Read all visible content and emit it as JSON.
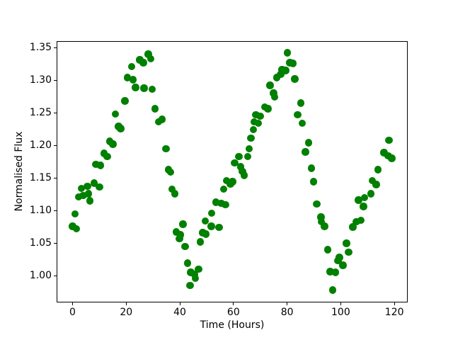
{
  "figure": {
    "background_color": "#ffffff",
    "axes_background_color": "#ffffff",
    "spine_color": "#000000"
  },
  "chart_data": {
    "type": "scatter",
    "title": "",
    "xlabel": "Time (Hours)",
    "ylabel": "Normalised Flux",
    "marker_color": "#008000",
    "marker_diameter_px": 10.6,
    "grid": false,
    "legend": null,
    "xlim": [
      -5.94,
      124.97
    ],
    "ylim": [
      0.959,
      1.36
    ],
    "xticks": [
      0,
      20,
      40,
      60,
      80,
      100,
      120
    ],
    "xtick_labels": [
      "0",
      "20",
      "40",
      "60",
      "80",
      "100",
      "120"
    ],
    "yticks": [
      1.0,
      1.05,
      1.1,
      1.15,
      1.2,
      1.25,
      1.3,
      1.35
    ],
    "ytick_labels": [
      "1.00",
      "1.05",
      "1.10",
      "1.15",
      "1.20",
      "1.25",
      "1.30",
      "1.35"
    ],
    "points": [
      [
        0.0,
        1.076
      ],
      [
        0.9,
        1.095
      ],
      [
        1.5,
        1.072
      ],
      [
        2.2,
        1.121
      ],
      [
        3.3,
        1.134
      ],
      [
        3.9,
        1.123
      ],
      [
        5.5,
        1.137
      ],
      [
        5.9,
        1.126
      ],
      [
        6.5,
        1.115
      ],
      [
        8.0,
        1.142
      ],
      [
        8.7,
        1.171
      ],
      [
        10.1,
        1.136
      ],
      [
        10.4,
        1.169
      ],
      [
        11.7,
        1.188
      ],
      [
        12.9,
        1.183
      ],
      [
        13.9,
        1.206
      ],
      [
        15.1,
        1.202
      ],
      [
        16.0,
        1.248
      ],
      [
        17.1,
        1.229
      ],
      [
        18.0,
        1.226
      ],
      [
        19.5,
        1.268
      ],
      [
        20.5,
        1.304
      ],
      [
        22.0,
        1.321
      ],
      [
        22.6,
        1.301
      ],
      [
        23.5,
        1.289
      ],
      [
        25.1,
        1.331
      ],
      [
        26.4,
        1.327
      ],
      [
        26.6,
        1.288
      ],
      [
        28.2,
        1.34
      ],
      [
        29.2,
        1.333
      ],
      [
        29.7,
        1.286
      ],
      [
        30.8,
        1.256
      ],
      [
        32.1,
        1.236
      ],
      [
        33.4,
        1.24
      ],
      [
        34.8,
        1.195
      ],
      [
        35.8,
        1.163
      ],
      [
        36.6,
        1.159
      ],
      [
        37.1,
        1.133
      ],
      [
        38.1,
        1.126
      ],
      [
        38.7,
        1.067
      ],
      [
        39.8,
        1.057
      ],
      [
        40.3,
        1.063
      ],
      [
        41.1,
        1.079
      ],
      [
        42.0,
        1.045
      ],
      [
        42.9,
        1.019
      ],
      [
        43.8,
        0.985
      ],
      [
        44.1,
        1.005
      ],
      [
        45.5,
        1.002
      ],
      [
        45.8,
        0.996
      ],
      [
        47.0,
        1.01
      ],
      [
        47.6,
        1.052
      ],
      [
        48.6,
        1.066
      ],
      [
        49.5,
        1.084
      ],
      [
        49.8,
        1.064
      ],
      [
        51.7,
        1.076
      ],
      [
        51.9,
        1.096
      ],
      [
        53.4,
        1.113
      ],
      [
        54.6,
        1.074
      ],
      [
        55.4,
        1.111
      ],
      [
        56.3,
        1.133
      ],
      [
        57.0,
        1.109
      ],
      [
        57.4,
        1.146
      ],
      [
        58.9,
        1.141
      ],
      [
        59.6,
        1.144
      ],
      [
        60.5,
        1.173
      ],
      [
        62.0,
        1.183
      ],
      [
        62.7,
        1.167
      ],
      [
        63.3,
        1.16
      ],
      [
        64.0,
        1.154
      ],
      [
        65.3,
        1.183
      ],
      [
        65.8,
        1.195
      ],
      [
        66.5,
        1.211
      ],
      [
        67.4,
        1.224
      ],
      [
        67.7,
        1.236
      ],
      [
        68.4,
        1.247
      ],
      [
        69.3,
        1.234
      ],
      [
        70.0,
        1.245
      ],
      [
        71.7,
        1.259
      ],
      [
        72.8,
        1.256
      ],
      [
        73.7,
        1.292
      ],
      [
        75.0,
        1.28
      ],
      [
        75.3,
        1.274
      ],
      [
        76.1,
        1.304
      ],
      [
        77.6,
        1.309
      ],
      [
        78.1,
        1.316
      ],
      [
        79.5,
        1.315
      ],
      [
        80.1,
        1.342
      ],
      [
        81.0,
        1.327
      ],
      [
        82.2,
        1.326
      ],
      [
        82.9,
        1.302
      ],
      [
        84.0,
        1.247
      ],
      [
        85.1,
        1.265
      ],
      [
        85.6,
        1.234
      ],
      [
        86.9,
        1.19
      ],
      [
        88.0,
        1.204
      ],
      [
        89.1,
        1.165
      ],
      [
        89.9,
        1.144
      ],
      [
        91.1,
        1.11
      ],
      [
        92.6,
        1.09
      ],
      [
        92.8,
        1.083
      ],
      [
        93.9,
        1.076
      ],
      [
        95.1,
        1.04
      ],
      [
        96.1,
        1.006
      ],
      [
        97.0,
        0.978
      ],
      [
        98.1,
        1.005
      ],
      [
        98.9,
        1.023
      ],
      [
        99.5,
        1.028
      ],
      [
        100.8,
        1.016
      ],
      [
        102.1,
        1.05
      ],
      [
        103.0,
        1.036
      ],
      [
        104.5,
        1.075
      ],
      [
        105.8,
        1.083
      ],
      [
        106.7,
        1.116
      ],
      [
        107.5,
        1.085
      ],
      [
        108.4,
        1.106
      ],
      [
        108.9,
        1.12
      ],
      [
        111.2,
        1.126
      ],
      [
        111.8,
        1.146
      ],
      [
        113.3,
        1.14
      ],
      [
        113.9,
        1.163
      ],
      [
        116.2,
        1.189
      ],
      [
        117.7,
        1.184
      ],
      [
        117.9,
        1.208
      ],
      [
        119.0,
        1.18
      ]
    ]
  }
}
